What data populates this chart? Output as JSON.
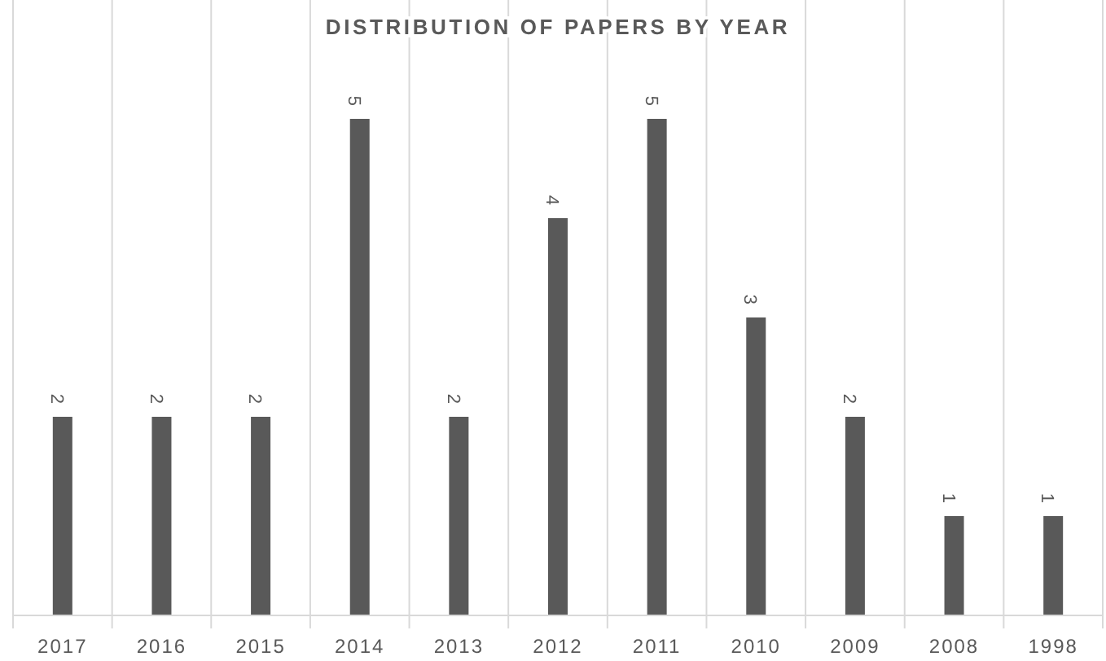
{
  "chart_data": {
    "type": "bar",
    "title": "DISTRIBUTION OF PAPERS BY YEAR",
    "categories": [
      "2017",
      "2016",
      "2015",
      "2014",
      "2013",
      "2012",
      "2011",
      "2010",
      "2009",
      "2008",
      "1998"
    ],
    "values": [
      2,
      2,
      2,
      5,
      2,
      4,
      5,
      3,
      2,
      1,
      1
    ],
    "color": "#595959",
    "data_labels": true,
    "grid": "x"
  }
}
